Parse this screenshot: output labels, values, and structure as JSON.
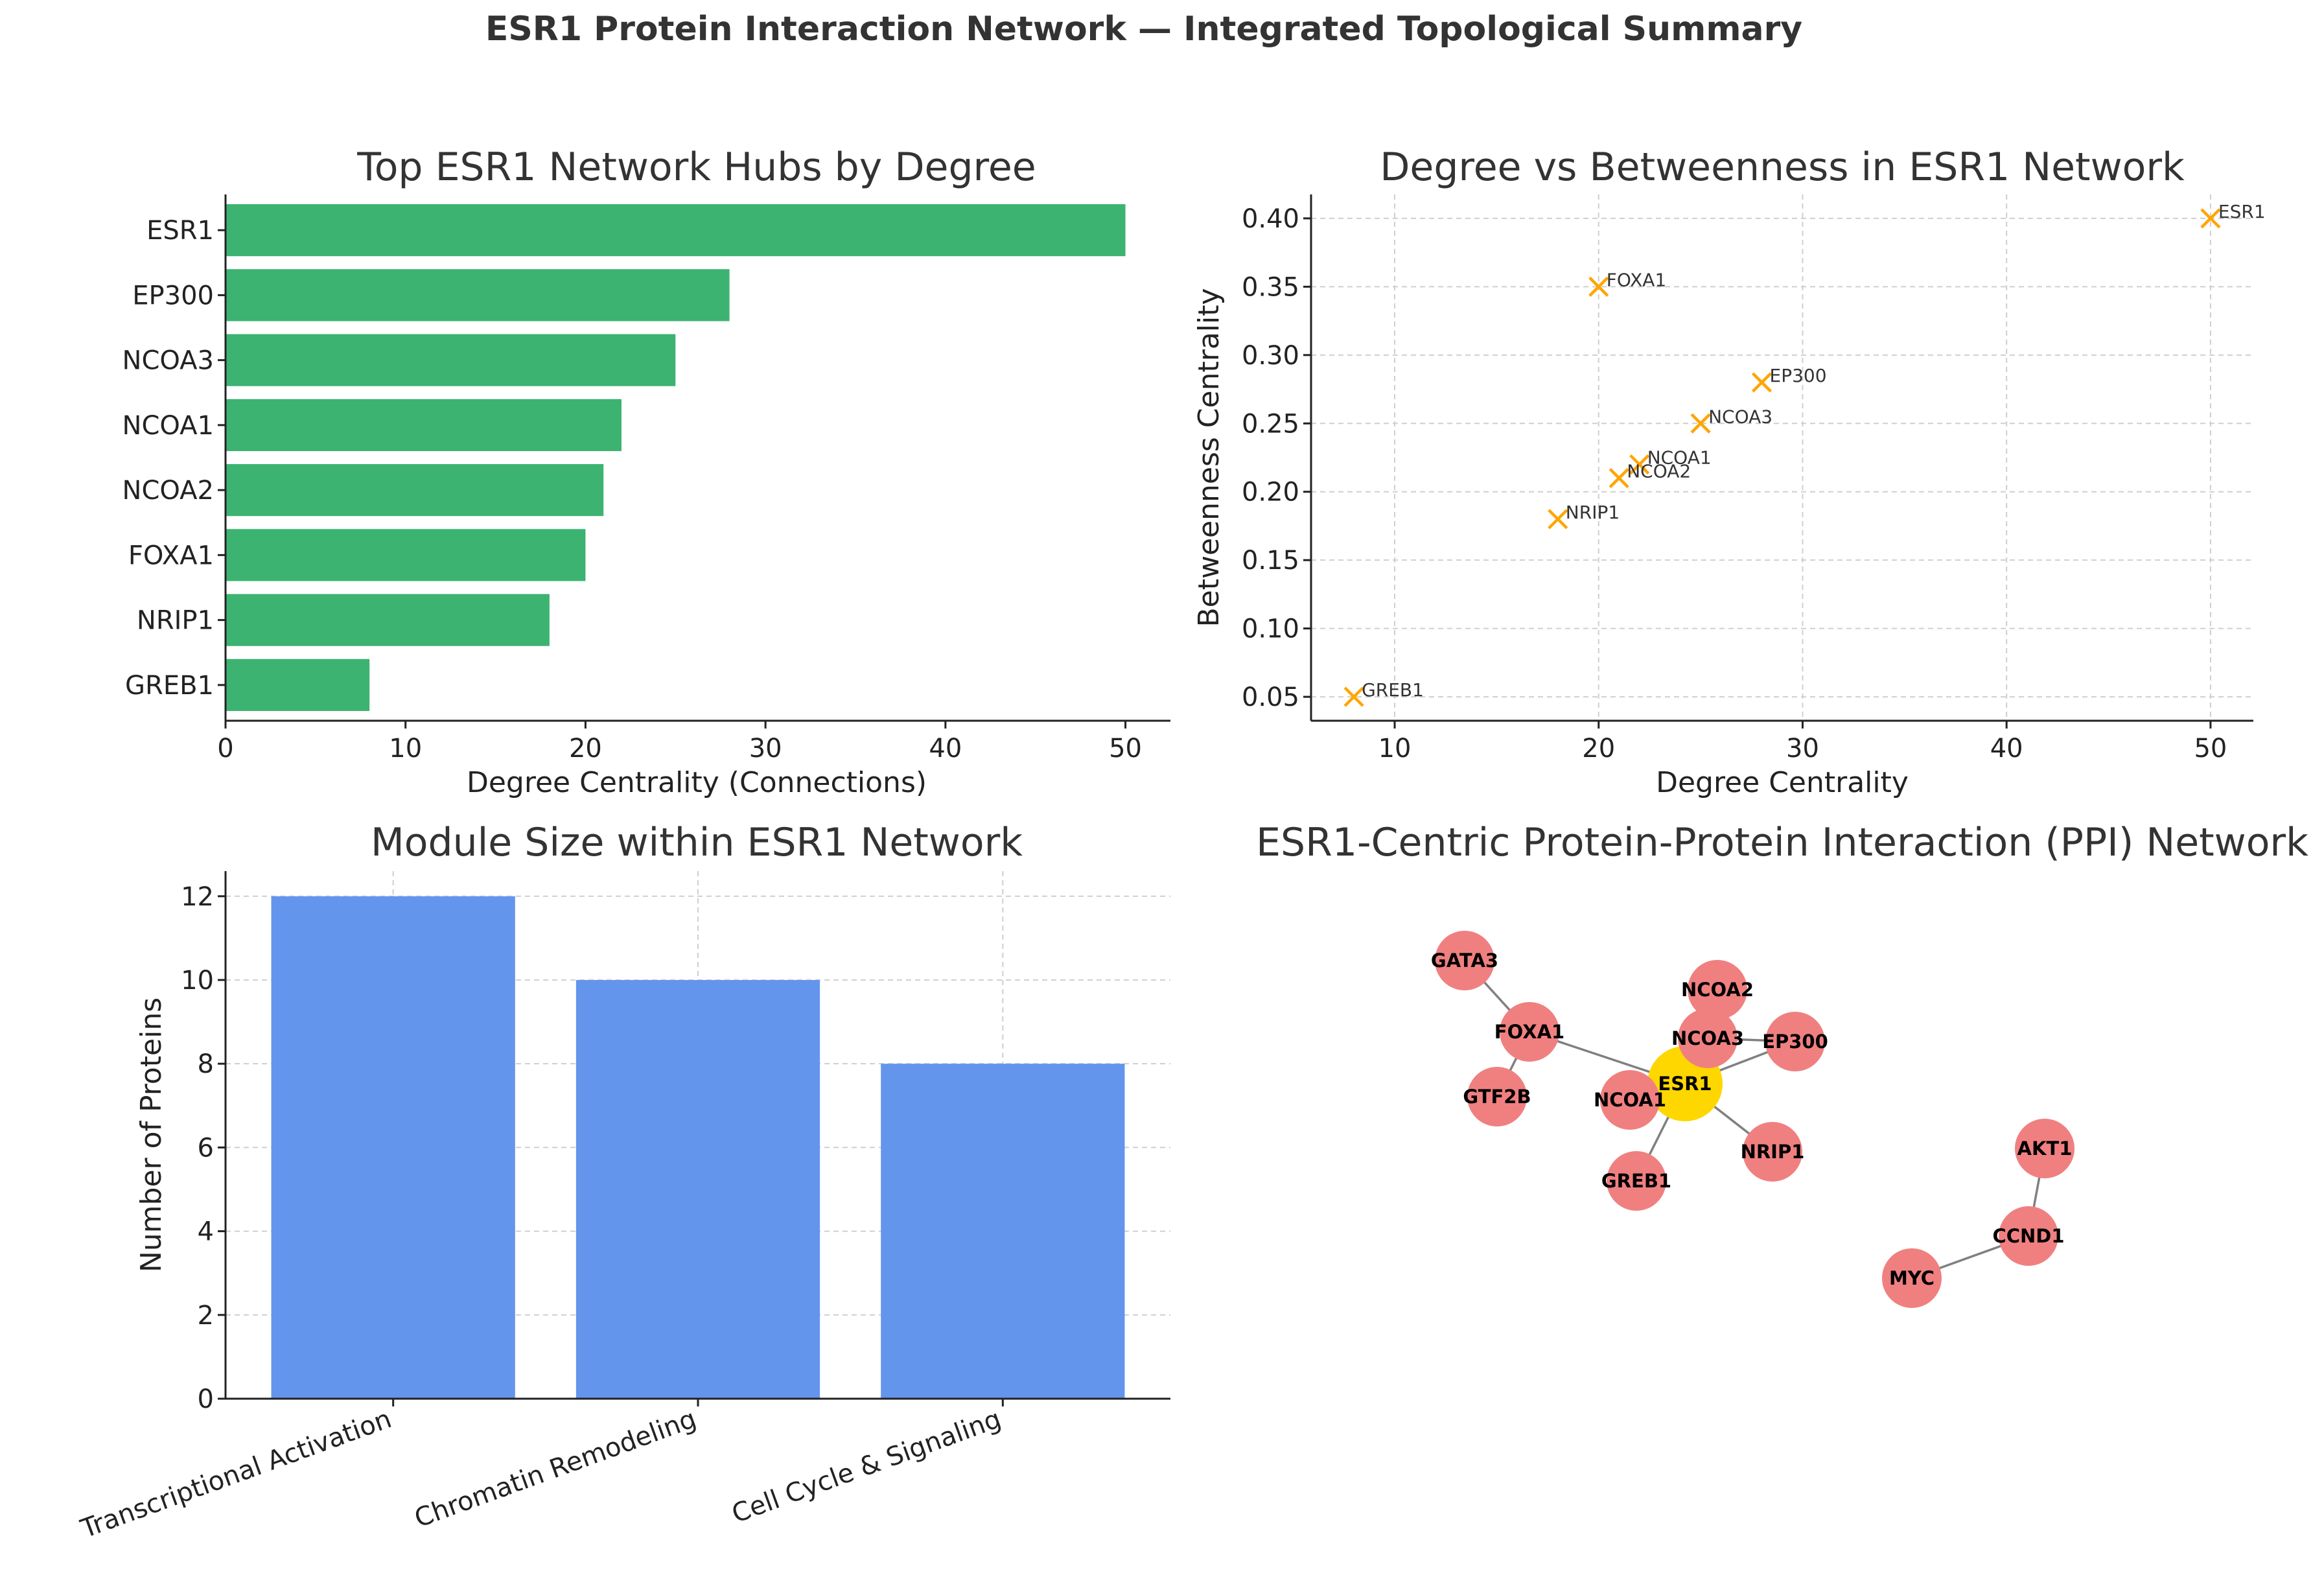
{
  "figure_title": "ESR1 Protein Interaction Network — Integrated Topological Summary",
  "colors": {
    "bar_green": "#3cb371",
    "bar_blue": "#6495ed",
    "marker_orange": "#ffa500",
    "node_red": "#f08080",
    "node_hub": "#ffd700",
    "edge": "#808080"
  },
  "chart_data": [
    {
      "type": "bar",
      "orientation": "horizontal",
      "title": "Top ESR1 Network Hubs by Degree",
      "xlabel": "Degree Centrality (Connections)",
      "ylabel": "",
      "categories": [
        "ESR1",
        "EP300",
        "NCOA3",
        "NCOA1",
        "NCOA2",
        "FOXA1",
        "NRIP1",
        "GREB1"
      ],
      "values": [
        50,
        28,
        25,
        22,
        21,
        20,
        18,
        8
      ],
      "xlim": [
        0,
        52.5
      ],
      "xticks": [
        0,
        10,
        20,
        30,
        40,
        50
      ],
      "grid": false
    },
    {
      "type": "scatter",
      "title": "Degree vs Betweenness in ESR1 Network",
      "xlabel": "Degree Centrality",
      "ylabel": "Betweenness Centrality",
      "points": [
        {
          "label": "ESR1",
          "x": 50,
          "y": 0.4
        },
        {
          "label": "FOXA1",
          "x": 20,
          "y": 0.35
        },
        {
          "label": "EP300",
          "x": 28,
          "y": 0.28
        },
        {
          "label": "NCOA3",
          "x": 25,
          "y": 0.25
        },
        {
          "label": "NCOA1",
          "x": 22,
          "y": 0.22
        },
        {
          "label": "NCOA2",
          "x": 21,
          "y": 0.21
        },
        {
          "label": "NRIP1",
          "x": 18,
          "y": 0.18
        },
        {
          "label": "GREB1",
          "x": 8,
          "y": 0.05
        }
      ],
      "xlim": [
        5.9,
        52.1
      ],
      "ylim": [
        0.0325,
        0.4175
      ],
      "xticks": [
        10,
        20,
        30,
        40,
        50
      ],
      "xtick_labels": [
        "10",
        "20",
        "30",
        "40",
        "50"
      ],
      "yticks": [
        0.05,
        0.1,
        0.15,
        0.2,
        0.25,
        0.3,
        0.35,
        0.4
      ],
      "ytick_labels": [
        "0.05",
        "0.10",
        "0.15",
        "0.20",
        "0.25",
        "0.30",
        "0.35",
        "0.40"
      ],
      "marker": "x",
      "grid": true
    },
    {
      "type": "bar",
      "orientation": "vertical",
      "title": "Module Size within ESR1 Network",
      "xlabel": "",
      "ylabel": "Number of Proteins",
      "categories": [
        "Transcriptional Activation",
        "Chromatin Remodeling",
        "Cell Cycle & Signaling"
      ],
      "values": [
        12,
        10,
        8
      ],
      "ylim": [
        0,
        12.6
      ],
      "yticks": [
        0,
        2,
        4,
        6,
        8,
        10,
        12
      ],
      "grid": true
    },
    {
      "type": "network",
      "title": "ESR1-Centric Protein-Protein Interaction (PPI) Network",
      "nodes": [
        {
          "id": "ESR1",
          "hub": true,
          "x": 0.0,
          "y": 0.0
        },
        {
          "id": "GATA3",
          "x": -0.68,
          "y": 0.38
        },
        {
          "id": "FOXA1",
          "x": -0.48,
          "y": 0.16
        },
        {
          "id": "GTF2B",
          "x": -0.58,
          "y": -0.04
        },
        {
          "id": "NCOA2",
          "x": 0.1,
          "y": 0.29
        },
        {
          "id": "NCOA3",
          "x": 0.07,
          "y": 0.14
        },
        {
          "id": "EP300",
          "x": 0.34,
          "y": 0.13
        },
        {
          "id": "NCOA1",
          "x": -0.17,
          "y": -0.05
        },
        {
          "id": "NRIP1",
          "x": 0.27,
          "y": -0.21
        },
        {
          "id": "GREB1",
          "x": -0.15,
          "y": -0.3
        },
        {
          "id": "AKT1",
          "x": 1.11,
          "y": -0.2
        },
        {
          "id": "CCND1",
          "x": 1.06,
          "y": -0.47
        },
        {
          "id": "MYC",
          "x": 0.7,
          "y": -0.6
        }
      ],
      "edges": [
        [
          "GATA3",
          "FOXA1"
        ],
        [
          "FOXA1",
          "GTF2B"
        ],
        [
          "FOXA1",
          "ESR1"
        ],
        [
          "NCOA2",
          "NCOA3"
        ],
        [
          "NCOA3",
          "ESR1"
        ],
        [
          "NCOA3",
          "EP300"
        ],
        [
          "EP300",
          "ESR1"
        ],
        [
          "NCOA1",
          "ESR1"
        ],
        [
          "ESR1",
          "NRIP1"
        ],
        [
          "ESR1",
          "GREB1"
        ],
        [
          "AKT1",
          "CCND1"
        ],
        [
          "CCND1",
          "MYC"
        ]
      ]
    }
  ]
}
